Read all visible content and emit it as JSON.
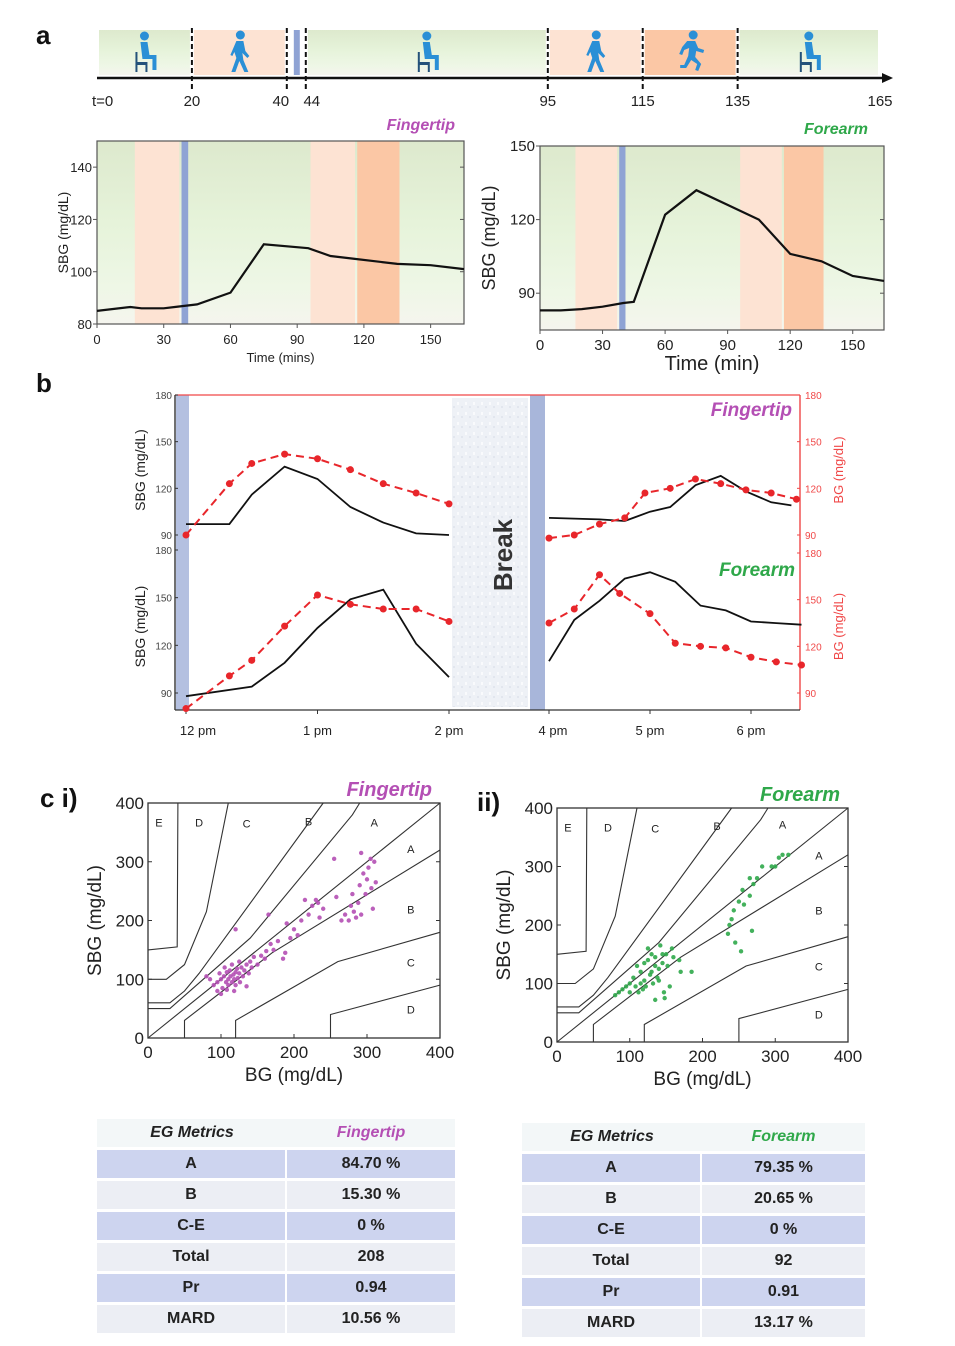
{
  "panels": {
    "a": {
      "label": "a",
      "timeline": {
        "ticks": [
          {
            "t": 0,
            "label": "t=0"
          },
          {
            "t": 20,
            "label": "20"
          },
          {
            "t": 40,
            "label": "40"
          },
          {
            "t": 44,
            "label": "44"
          },
          {
            "t": 95,
            "label": "95"
          },
          {
            "t": 115,
            "label": "115"
          },
          {
            "t": 135,
            "label": "135"
          },
          {
            "t": 165,
            "label": "165"
          }
        ],
        "segments": [
          {
            "start": 0,
            "end": 20,
            "activity": "sitting",
            "icon": "sitting-person-icon",
            "color": "#e4f1d8"
          },
          {
            "start": 20,
            "end": 40,
            "activity": "walking",
            "icon": "walking-person-icon",
            "color": "#fde3d3"
          },
          {
            "start": 40,
            "end": 44,
            "activity": "meal",
            "icon": "",
            "color": "#8fa3d4"
          },
          {
            "start": 44,
            "end": 95,
            "activity": "sitting",
            "icon": "sitting-person-icon",
            "color": "#e4f1d8"
          },
          {
            "start": 95,
            "end": 115,
            "activity": "walking",
            "icon": "walking-person-icon",
            "color": "#fde3d3"
          },
          {
            "start": 115,
            "end": 135,
            "activity": "running",
            "icon": "running-person-icon",
            "color": "#fbc7a5"
          },
          {
            "start": 135,
            "end": 165,
            "activity": "sitting",
            "icon": "sitting-person-icon",
            "color": "#e4f1d8"
          }
        ]
      }
    },
    "b": {
      "label": "b",
      "break_label": "Break"
    },
    "c": {
      "label_i": "c i)",
      "label_ii": "ii)"
    }
  },
  "colors": {
    "fingertip": "#b44fb4",
    "forearm": "#2fa84a",
    "bg_red": "#e8262b",
    "sbg_line": "#111111",
    "meal": "#8fa3d4",
    "sit": "#e4f1d8",
    "walk": "#fde3d3",
    "run": "#fbc7a5",
    "icon_blue": "#2a8fd6"
  },
  "chart_data": [
    {
      "id": "a-fingertip",
      "type": "line",
      "title": "Fingertip",
      "xlabel": "Time (mins)",
      "ylabel": "SBG (mg/dL)",
      "xlim": [
        0,
        165
      ],
      "ylim": [
        80,
        150
      ],
      "xticks": [
        0,
        30,
        60,
        90,
        120,
        150
      ],
      "yticks": [
        80,
        100,
        120,
        140
      ],
      "x": [
        0,
        15,
        20,
        30,
        35,
        45,
        60,
        75,
        95,
        105,
        115,
        135,
        150,
        165
      ],
      "series": [
        {
          "name": "SBG",
          "values": [
            85,
            86.5,
            86,
            86,
            86.5,
            87.5,
            92,
            110.5,
            109,
            106,
            105,
            103,
            102.5,
            101
          ]
        }
      ]
    },
    {
      "id": "a-forearm",
      "type": "line",
      "title": "Forearm",
      "xlabel": "Time (min)",
      "ylabel": "SBG (mg/dL)",
      "xlim": [
        0,
        165
      ],
      "ylim": [
        75,
        150
      ],
      "xticks": [
        0,
        30,
        60,
        90,
        120,
        150
      ],
      "yticks": [
        90,
        120,
        150
      ],
      "x": [
        0,
        10,
        20,
        30,
        40,
        45,
        60,
        75,
        90,
        105,
        120,
        135,
        150,
        165
      ],
      "series": [
        {
          "name": "SBG",
          "values": [
            83,
            83,
            83.5,
            84.5,
            86,
            86.5,
            122,
            132,
            126,
            120,
            106,
            103,
            97,
            95
          ]
        }
      ]
    },
    {
      "id": "b-fingertip",
      "type": "line",
      "title": "Fingertip",
      "ylabel": "SBG (mg/dL)",
      "ylabel_right": "BG (mg/dL)",
      "ylim": [
        90,
        180
      ],
      "yticks": [
        90,
        120,
        150,
        180
      ],
      "xticklabels": [
        "12 pm",
        "1 pm",
        "2 pm",
        "4 pm",
        "5 pm",
        "6 pm"
      ],
      "series": [
        {
          "name": "SBG",
          "style": "solid",
          "segments": [
            {
              "x": [
                0,
                0.33,
                0.5,
                0.75,
                1,
                1.25,
                1.5,
                1.75,
                2
              ],
              "y": [
                97,
                97,
                116,
                134,
                126,
                108,
                98,
                91,
                90
              ]
            },
            {
              "x": [
                4,
                4.5,
                4.75,
                5,
                5.2,
                5.45,
                5.7,
                5.95,
                6.2,
                6.4
              ],
              "y": [
                101,
                100,
                99,
                105,
                108,
                122,
                128,
                118,
                111,
                109
              ]
            }
          ]
        },
        {
          "name": "BG",
          "style": "dashed-markers",
          "segments": [
            {
              "x": [
                0,
                0.33,
                0.5,
                0.75,
                1,
                1.25,
                1.5,
                1.75,
                2
              ],
              "y": [
                90,
                123,
                136,
                142,
                139,
                132,
                123,
                117,
                110
              ]
            },
            {
              "x": [
                4,
                4.25,
                4.5,
                4.75,
                4.95,
                5.2,
                5.45,
                5.7,
                5.95,
                6.2,
                6.45
              ],
              "y": [
                88,
                90,
                97,
                101,
                117,
                120,
                126,
                123,
                119,
                117,
                113
              ]
            }
          ]
        }
      ]
    },
    {
      "id": "b-forearm",
      "type": "line",
      "title": "Forearm",
      "ylabel": "SBG (mg/dL)",
      "ylabel_right": "BG (mg/dL)",
      "ylim": [
        80,
        180
      ],
      "yticks": [
        90,
        120,
        150,
        180
      ],
      "series": [
        {
          "name": "SBG",
          "style": "solid",
          "segments": [
            {
              "x": [
                0,
                0.5,
                0.75,
                1,
                1.25,
                1.5,
                1.75,
                2
              ],
              "y": [
                88,
                94,
                109,
                131,
                149,
                155,
                121,
                100
              ]
            },
            {
              "x": [
                4,
                4.25,
                4.5,
                4.75,
                5,
                5.25,
                5.5,
                5.75,
                6,
                6.25,
                6.5
              ],
              "y": [
                110,
                136,
                148,
                162,
                166,
                160,
                145,
                142,
                135,
                134,
                133
              ]
            }
          ]
        },
        {
          "name": "BG",
          "style": "dashed-markers",
          "segments": [
            {
              "x": [
                0,
                0.33,
                0.5,
                0.75,
                1,
                1.25,
                1.5,
                1.75,
                2
              ],
              "y": [
                80,
                101,
                111,
                133,
                153,
                147,
                144,
                144,
                136
              ]
            },
            {
              "x": [
                4,
                4.25,
                4.5,
                4.7,
                5,
                5.25,
                5.5,
                5.75,
                6,
                6.25,
                6.5
              ],
              "y": [
                135,
                144,
                166,
                154,
                141,
                122,
                120,
                119,
                113,
                110,
                108
              ]
            }
          ]
        }
      ]
    },
    {
      "id": "c-fingertip",
      "type": "scatter",
      "title": "Fingertip",
      "xlabel": "BG (mg/dL)",
      "ylabel": "SBG (mg/dL)",
      "xlim": [
        0,
        400
      ],
      "ylim": [
        0,
        400
      ],
      "ticks": [
        0,
        100,
        200,
        300,
        400
      ],
      "zone_labels": [
        {
          "t": "E",
          "x": 15,
          "y": 360
        },
        {
          "t": "D",
          "x": 70,
          "y": 360
        },
        {
          "t": "C",
          "x": 135,
          "y": 358
        },
        {
          "t": "B",
          "x": 220,
          "y": 362
        },
        {
          "t": "A",
          "x": 310,
          "y": 360
        },
        {
          "t": "A",
          "x": 360,
          "y": 315
        },
        {
          "t": "B",
          "x": 360,
          "y": 212
        },
        {
          "t": "C",
          "x": 360,
          "y": 122
        },
        {
          "t": "D",
          "x": 360,
          "y": 42
        }
      ],
      "points": [
        [
          85,
          100
        ],
        [
          90,
          90
        ],
        [
          95,
          95
        ],
        [
          98,
          110
        ],
        [
          100,
          100
        ],
        [
          102,
          85
        ],
        [
          104,
          105
        ],
        [
          105,
          120
        ],
        [
          107,
          95
        ],
        [
          108,
          112
        ],
        [
          110,
          100
        ],
        [
          110,
          90
        ],
        [
          112,
          115
        ],
        [
          113,
          105
        ],
        [
          115,
          95
        ],
        [
          115,
          125
        ],
        [
          117,
          108
        ],
        [
          118,
          100
        ],
        [
          120,
          112
        ],
        [
          120,
          90
        ],
        [
          122,
          118
        ],
        [
          123,
          102
        ],
        [
          125,
          110
        ],
        [
          126,
          95
        ],
        [
          128,
          120
        ],
        [
          130,
          105
        ],
        [
          132,
          115
        ],
        [
          135,
          125
        ],
        [
          138,
          110
        ],
        [
          140,
          130
        ],
        [
          142,
          120
        ],
        [
          145,
          138
        ],
        [
          150,
          125
        ],
        [
          155,
          140
        ],
        [
          160,
          135
        ],
        [
          162,
          148
        ],
        [
          165,
          210
        ],
        [
          168,
          160
        ],
        [
          172,
          150
        ],
        [
          178,
          165
        ],
        [
          185,
          135
        ],
        [
          188,
          145
        ],
        [
          190,
          195
        ],
        [
          195,
          170
        ],
        [
          200,
          185
        ],
        [
          205,
          175
        ],
        [
          210,
          200
        ],
        [
          215,
          235
        ],
        [
          220,
          210
        ],
        [
          225,
          225
        ],
        [
          230,
          235
        ],
        [
          233,
          230
        ],
        [
          235,
          205
        ],
        [
          240,
          220
        ],
        [
          255,
          305
        ],
        [
          258,
          240
        ],
        [
          265,
          200
        ],
        [
          270,
          210
        ],
        [
          275,
          200
        ],
        [
          278,
          225
        ],
        [
          280,
          245
        ],
        [
          282,
          215
        ],
        [
          285,
          205
        ],
        [
          288,
          230
        ],
        [
          290,
          260
        ],
        [
          292,
          210
        ],
        [
          295,
          280
        ],
        [
          298,
          245
        ],
        [
          300,
          270
        ],
        [
          302,
          290
        ],
        [
          305,
          305
        ],
        [
          306,
          255
        ],
        [
          308,
          220
        ],
        [
          310,
          300
        ],
        [
          312,
          265
        ],
        [
          292,
          315
        ],
        [
          120,
          185
        ],
        [
          80,
          105
        ],
        [
          95,
          80
        ],
        [
          100,
          75
        ],
        [
          108,
          82
        ],
        [
          118,
          80
        ],
        [
          135,
          88
        ],
        [
          125,
          130
        ]
      ]
    },
    {
      "id": "c-forearm",
      "type": "scatter",
      "title": "Forearm",
      "xlabel": "BG (mg/dL)",
      "ylabel": "SBG (mg/dL)",
      "xlim": [
        0,
        400
      ],
      "ylim": [
        0,
        400
      ],
      "ticks": [
        0,
        100,
        200,
        300,
        400
      ],
      "zone_labels": [
        {
          "t": "E",
          "x": 15,
          "y": 360
        },
        {
          "t": "D",
          "x": 70,
          "y": 360
        },
        {
          "t": "C",
          "x": 135,
          "y": 358
        },
        {
          "t": "B",
          "x": 220,
          "y": 362
        },
        {
          "t": "A",
          "x": 310,
          "y": 365
        },
        {
          "t": "A",
          "x": 360,
          "y": 312
        },
        {
          "t": "B",
          "x": 360,
          "y": 218
        },
        {
          "t": "C",
          "x": 360,
          "y": 122
        },
        {
          "t": "D",
          "x": 360,
          "y": 40
        }
      ],
      "points": [
        [
          80,
          80
        ],
        [
          85,
          85
        ],
        [
          90,
          90
        ],
        [
          95,
          95
        ],
        [
          100,
          100
        ],
        [
          100,
          85
        ],
        [
          105,
          110
        ],
        [
          108,
          95
        ],
        [
          110,
          130
        ],
        [
          112,
          85
        ],
        [
          115,
          100
        ],
        [
          115,
          120
        ],
        [
          118,
          90
        ],
        [
          120,
          135
        ],
        [
          120,
          105
        ],
        [
          122,
          95
        ],
        [
          125,
          160
        ],
        [
          125,
          140
        ],
        [
          128,
          115
        ],
        [
          130,
          150
        ],
        [
          130,
          120
        ],
        [
          132,
          100
        ],
        [
          135,
          145
        ],
        [
          135,
          130
        ],
        [
          135,
          72
        ],
        [
          138,
          110
        ],
        [
          140,
          125
        ],
        [
          140,
          105
        ],
        [
          142,
          165
        ],
        [
          145,
          150
        ],
        [
          145,
          135
        ],
        [
          147,
          85
        ],
        [
          148,
          75
        ],
        [
          150,
          150
        ],
        [
          152,
          130
        ],
        [
          155,
          95
        ],
        [
          158,
          160
        ],
        [
          160,
          145
        ],
        [
          168,
          140
        ],
        [
          170,
          120
        ],
        [
          185,
          120
        ],
        [
          235,
          185
        ],
        [
          237,
          200
        ],
        [
          240,
          210
        ],
        [
          243,
          225
        ],
        [
          245,
          170
        ],
        [
          250,
          240
        ],
        [
          253,
          155
        ],
        [
          255,
          260
        ],
        [
          257,
          235
        ],
        [
          265,
          280
        ],
        [
          265,
          250
        ],
        [
          268,
          190
        ],
        [
          270,
          270
        ],
        [
          275,
          280
        ],
        [
          282,
          300
        ],
        [
          295,
          300
        ],
        [
          300,
          300
        ],
        [
          305,
          315
        ],
        [
          310,
          320
        ],
        [
          318,
          320
        ]
      ]
    }
  ],
  "tables": [
    {
      "header": [
        "EG Metrics",
        "Fingertip"
      ],
      "accent": "fingertip",
      "rows": [
        [
          "A",
          "84.70 %"
        ],
        [
          "B",
          "15.30 %"
        ],
        [
          "C-E",
          "0 %"
        ],
        [
          "Total",
          "208"
        ],
        [
          "Pr",
          "0.94"
        ],
        [
          "MARD",
          "10.56 %"
        ]
      ]
    },
    {
      "header": [
        "EG Metrics",
        "Forearm"
      ],
      "accent": "forearm",
      "rows": [
        [
          "A",
          "79.35 %"
        ],
        [
          "B",
          "20.65 %"
        ],
        [
          "C-E",
          "0 %"
        ],
        [
          "Total",
          "92"
        ],
        [
          "Pr",
          "0.91"
        ],
        [
          "MARD",
          "13.17 %"
        ]
      ]
    }
  ]
}
